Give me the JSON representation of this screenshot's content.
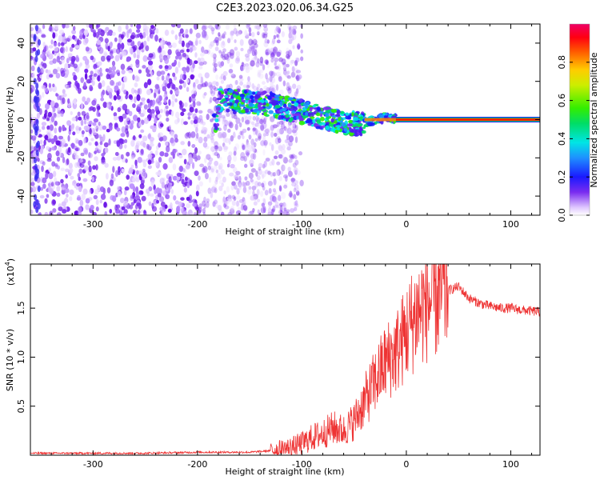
{
  "title": "C2E3.2023.020.06.34.G25",
  "chart_data": [
    {
      "type": "heatmap",
      "xlabel": "Height of straight line (km)",
      "ylabel": "Frequency (Hz)",
      "xlim": [
        -360,
        128
      ],
      "ylim": [
        -50,
        50
      ],
      "x_ticks": [
        -300,
        -200,
        -100,
        0,
        100
      ],
      "y_ticks": [
        -40,
        -20,
        0,
        20,
        40
      ],
      "colorbar": {
        "label": "Normalized spectral amplitude",
        "range": [
          0,
          1
        ],
        "ticks": [
          0.0,
          0.2,
          0.4,
          0.6,
          0.8
        ],
        "colormap": "rainbow-white-violet-to-magenta"
      },
      "noise_region_x": [
        -360,
        -120
      ],
      "signal_track": [
        {
          "x": -180,
          "f": 10
        },
        {
          "x": -140,
          "f": 9
        },
        {
          "x": -100,
          "f": 4
        },
        {
          "x": -60,
          "f": -2
        },
        {
          "x": -40,
          "f": -2
        },
        {
          "x": -20,
          "f": 1
        },
        {
          "x": 0,
          "f": 0
        },
        {
          "x": 128,
          "f": 0
        }
      ]
    },
    {
      "type": "line",
      "xlabel": "Height of straight line (km)",
      "ylabel": "SNR (10 * v/v)",
      "ylabel_multiplier": "(x10",
      "ylabel_exponent": "4",
      "ylabel_multiplier_close": ")",
      "xlim": [
        -360,
        128
      ],
      "ylim": [
        0,
        1.95
      ],
      "x_ticks": [
        -300,
        -200,
        -100,
        0,
        100
      ],
      "y_ticks": [
        0.5,
        1.0,
        1.5
      ],
      "color": "#ee3333",
      "series": [
        {
          "x": [
            -360,
            -300,
            -250,
            -200,
            -150,
            -125,
            -110,
            -100,
            -90,
            -80,
            -70,
            -60,
            -50,
            -40,
            -30,
            -20,
            -10,
            0,
            10,
            20,
            30,
            40,
            50,
            60,
            70,
            80,
            90,
            100,
            110,
            120,
            128
          ],
          "values": [
            0.02,
            0.02,
            0.02,
            0.03,
            0.03,
            0.05,
            0.08,
            0.12,
            0.18,
            0.22,
            0.28,
            0.25,
            0.35,
            0.55,
            0.75,
            0.95,
            1.05,
            1.25,
            1.45,
            1.55,
            1.62,
            1.68,
            1.72,
            1.6,
            1.55,
            1.52,
            1.5,
            1.5,
            1.48,
            1.47,
            1.46
          ]
        }
      ]
    }
  ]
}
